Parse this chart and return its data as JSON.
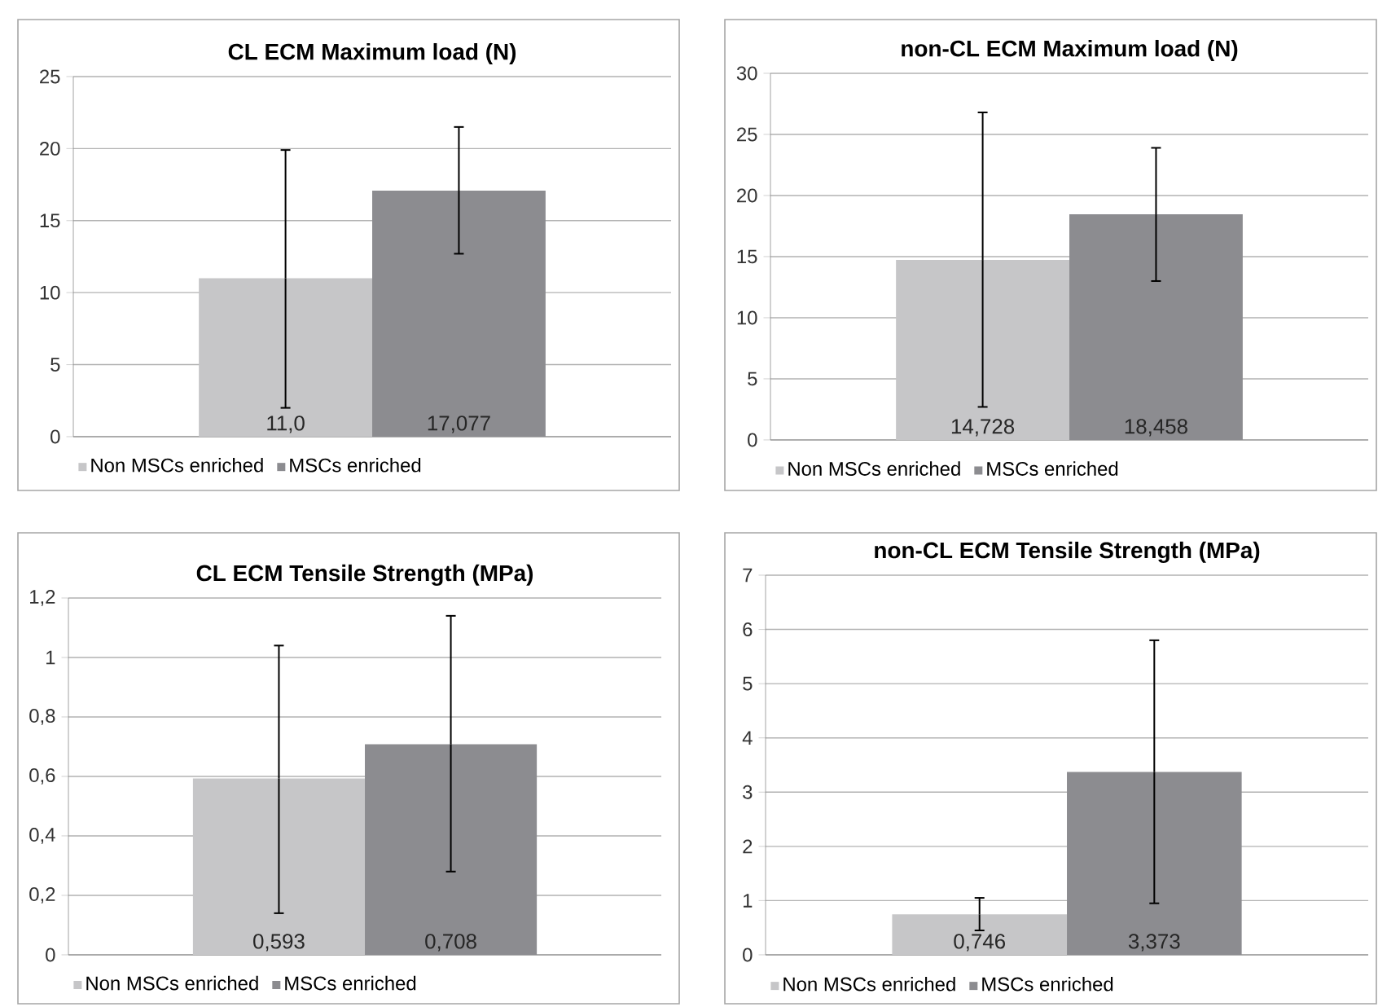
{
  "chart_data": [
    {
      "type": "bar",
      "title": "CL ECM Maximum load (N)",
      "categories": [
        null
      ],
      "series": [
        {
          "name": "Non MSCs enriched",
          "color": "#c6c6c8",
          "values": [
            11.0
          ],
          "errors": [
            [
              2.0,
              19.9
            ]
          ],
          "value_labels": [
            "11,0"
          ]
        },
        {
          "name": "MSCs enriched",
          "color": "#8c8c90",
          "values": [
            17.077
          ],
          "errors": [
            [
              12.7,
              21.5
            ]
          ],
          "value_labels": [
            "17,077"
          ]
        }
      ],
      "ylim": [
        0,
        25
      ],
      "yticks": [
        0,
        5,
        10,
        15,
        20,
        25
      ],
      "grid": "y",
      "legend": "bottom",
      "tick_labels": "y"
    },
    {
      "type": "bar",
      "title": "non-CL ECM Maximum load (N)",
      "categories": [
        null
      ],
      "series": [
        {
          "name": "Non MSCs enriched",
          "color": "#c6c6c8",
          "values": [
            14.728
          ],
          "errors": [
            [
              2.7,
              26.8
            ]
          ],
          "value_labels": [
            "14,728"
          ]
        },
        {
          "name": "MSCs enriched",
          "color": "#8c8c90",
          "values": [
            18.458
          ],
          "errors": [
            [
              13.0,
              23.9
            ]
          ],
          "value_labels": [
            "18,458"
          ]
        }
      ],
      "ylim": [
        0,
        30
      ],
      "yticks": [
        0,
        5,
        10,
        15,
        20,
        25,
        30
      ],
      "grid": "y",
      "legend": "bottom",
      "tick_labels": "y"
    },
    {
      "type": "bar",
      "title": "CL ECM Tensile Strength (MPa)",
      "categories": [
        null
      ],
      "series": [
        {
          "name": "Non MSCs enriched",
          "color": "#c6c6c8",
          "values": [
            0.593
          ],
          "errors": [
            [
              0.14,
              1.04
            ]
          ],
          "value_labels": [
            "0,593"
          ]
        },
        {
          "name": "MSCs enriched",
          "color": "#8c8c90",
          "values": [
            0.708
          ],
          "errors": [
            [
              0.28,
              1.14
            ]
          ],
          "value_labels": [
            "0,708"
          ]
        }
      ],
      "ylim": [
        0,
        1.2
      ],
      "yticks": [
        0,
        {
          "value": 0.2,
          "label": "0,2"
        },
        {
          "value": 0.4,
          "label": "0,4"
        },
        {
          "value": 0.6,
          "label": "0,6"
        },
        {
          "value": 0.8,
          "label": "0,8"
        },
        1,
        {
          "value": 1.2,
          "label": "1,2"
        }
      ],
      "grid": "y",
      "legend": "bottom",
      "tick_labels": "y"
    },
    {
      "type": "bar",
      "title": "non-CL ECM Tensile Strength (MPa)",
      "categories": [
        null
      ],
      "series": [
        {
          "name": "Non MSCs enriched",
          "color": "#c6c6c8",
          "values": [
            0.746
          ],
          "errors": [
            [
              0.45,
              1.05
            ]
          ],
          "value_labels": [
            "0,746"
          ]
        },
        {
          "name": "MSCs enriched",
          "color": "#8c8c90",
          "values": [
            3.373
          ],
          "errors": [
            [
              0.95,
              5.8
            ]
          ],
          "value_labels": [
            "3,373"
          ]
        }
      ],
      "ylim": [
        0,
        7
      ],
      "yticks": [
        0,
        1,
        2,
        3,
        4,
        5,
        6,
        7
      ],
      "grid": "y",
      "legend": "bottom",
      "tick_labels": "y"
    }
  ]
}
